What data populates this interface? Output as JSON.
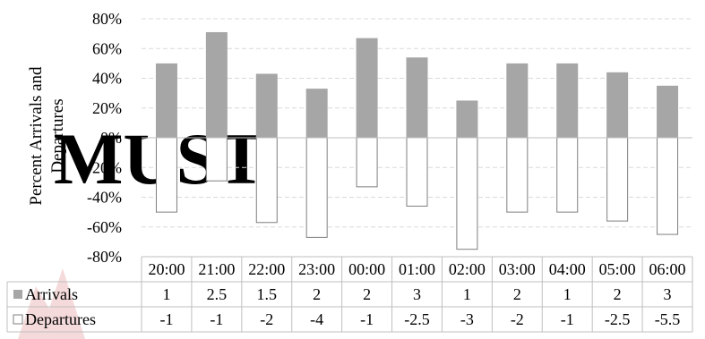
{
  "watermark": "MUST",
  "chart_data": {
    "type": "bar",
    "ylabel": "Percent Arrivals and Departures",
    "ylim": [
      -0.8,
      0.8
    ],
    "yticks": [
      0.8,
      0.6,
      0.4,
      0.2,
      0,
      -0.2,
      -0.4,
      -0.6,
      -0.8
    ],
    "ytick_labels": [
      "80%",
      "60%",
      "40%",
      "20%",
      "0%",
      "-20%",
      "-40%",
      "-60%",
      "-80%"
    ],
    "grid": true,
    "categories": [
      "20:00",
      "21:00",
      "22:00",
      "23:00",
      "00:00",
      "01:00",
      "02:00",
      "03:00",
      "04:00",
      "05:00",
      "06:00"
    ],
    "series": [
      {
        "name": "Arrivals",
        "color": "#a6a6a6",
        "percent": [
          0.5,
          0.71,
          0.43,
          0.33,
          0.67,
          0.54,
          0.25,
          0.5,
          0.5,
          0.44,
          0.35
        ],
        "table_values": [
          "1",
          "2.5",
          "1.5",
          "2",
          "2",
          "3",
          "1",
          "2",
          "1",
          "2",
          "3"
        ]
      },
      {
        "name": "Departures",
        "color": "#ffffff",
        "percent": [
          -0.5,
          -0.29,
          -0.57,
          -0.67,
          -0.33,
          -0.46,
          -0.75,
          -0.5,
          -0.5,
          -0.56,
          -0.65
        ],
        "table_values": [
          "-1",
          "-1",
          "-2",
          "-4",
          "-1",
          "-2.5",
          "-3",
          "-2",
          "-1",
          "-2.5",
          "-5.5"
        ]
      }
    ]
  }
}
